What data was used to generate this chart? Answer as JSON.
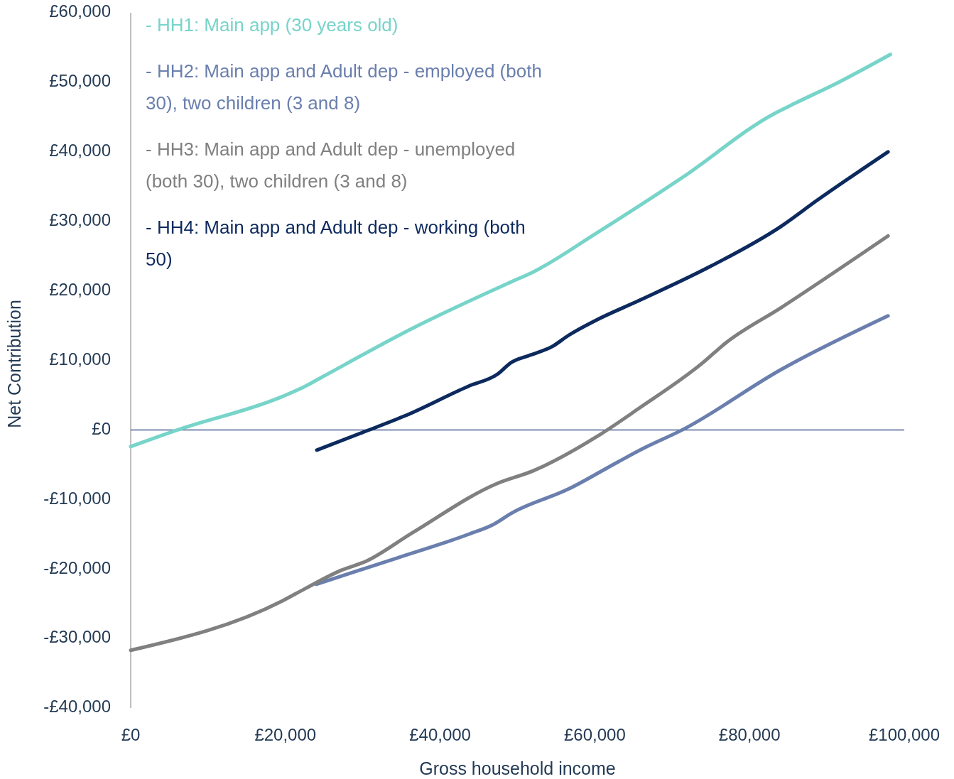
{
  "chart_data": {
    "type": "line",
    "xlabel": "Gross household income",
    "ylabel": "Net Contribution",
    "xlim": [
      0,
      100000
    ],
    "ylim": [
      -40000,
      60000
    ],
    "xticks": [
      {
        "value": 0,
        "label": "£0"
      },
      {
        "value": 20000,
        "label": "£20,000"
      },
      {
        "value": 40000,
        "label": "£40,000"
      },
      {
        "value": 60000,
        "label": "£60,000"
      },
      {
        "value": 80000,
        "label": "£80,000"
      },
      {
        "value": 100000,
        "label": "£100,000"
      }
    ],
    "yticks": [
      {
        "value": -40000,
        "label": "-£40,000"
      },
      {
        "value": -30000,
        "label": "-£30,000"
      },
      {
        "value": -20000,
        "label": "-£20,000"
      },
      {
        "value": -10000,
        "label": "-£10,000"
      },
      {
        "value": 0,
        "label": "£0"
      },
      {
        "value": 10000,
        "label": "£10,000"
      },
      {
        "value": 20000,
        "label": "£20,000"
      },
      {
        "value": 30000,
        "label": "£30,000"
      },
      {
        "value": 40000,
        "label": "£40,000"
      },
      {
        "value": 50000,
        "label": "£50,000"
      },
      {
        "value": 60000,
        "label": "£60,000"
      }
    ],
    "ref_lines": [
      {
        "axis": "y",
        "value": 0,
        "color": "#4a5f96"
      }
    ],
    "grid": false,
    "legend": "top left",
    "marker": "none",
    "line_style": "solid",
    "series": [
      {
        "name": "- HH1: Main app (30 years old)",
        "color": "#77d4c9",
        "x": [
          0,
          6060,
          19600,
          22600,
          24900,
          36400,
          49200,
          52000,
          60200,
          71300,
          83200,
          85900,
          91500,
          98200
        ],
        "values": [
          -2400,
          0,
          4800,
          6300,
          7700,
          14600,
          21300,
          22700,
          28300,
          36300,
          45500,
          47000,
          50000,
          54000
        ]
      },
      {
        "name": "- HH2: Main app and Adult dep - employed (both 30), two children (3 and 8)",
        "color": "#6a7fae",
        "x": [
          24000,
          34500,
          43700,
          46900,
          49200,
          56600,
          63000,
          66200,
          71300,
          84100,
          97900
        ],
        "values": [
          -22200,
          -18400,
          -15000,
          -13600,
          -12000,
          -8500,
          -4600,
          -2700,
          0,
          8700,
          16400
        ]
      },
      {
        "name": "- HH3: Main app and Adult dep - unemployed (both 30), two children (3 and 8)",
        "color": "#808080",
        "x": [
          0,
          19600,
          22600,
          27200,
          30400,
          36400,
          47400,
          52000,
          60200,
          65700,
          74000,
          76800,
          84100,
          97900
        ],
        "values": [
          -31700,
          -24600,
          -22800,
          -20200,
          -18900,
          -14800,
          -7700,
          -5900,
          -1000,
          3100,
          9700,
          12400,
          17600,
          27900
        ]
      },
      {
        "name": "- HH4: Main app and Adult dep - working (both 50)",
        "color": "#0d2a5e",
        "x": [
          24060,
          29900,
          35400,
          43700,
          47400,
          49200,
          51500,
          54500,
          56600,
          60200,
          65700,
          74900,
          84100,
          88700,
          97900
        ],
        "values": [
          -2900,
          -400,
          2000,
          6300,
          8000,
          9700,
          10700,
          12000,
          13600,
          15800,
          18600,
          23500,
          29300,
          33000,
          40000
        ]
      }
    ]
  }
}
